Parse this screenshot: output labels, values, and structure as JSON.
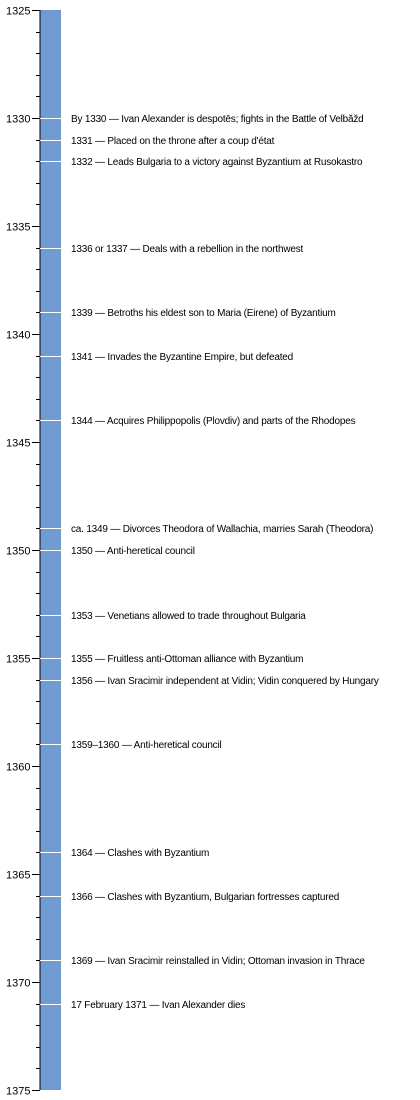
{
  "timeline": {
    "start_year": 1325,
    "end_year": 1375,
    "major_step": 5,
    "minor_step": 1,
    "bar_color": "#6f9bd2",
    "events": [
      {
        "year": 1330,
        "label": "By 1330 — Ivan Alexander is despotēs; fights in the Battle of Velbăžd"
      },
      {
        "year": 1331,
        "label": "1331 — Placed on the throne after a coup d'état"
      },
      {
        "year": 1332,
        "label": "1332 — Leads Bulgaria to a victory against Byzantium at Rusokastro"
      },
      {
        "year": 1336,
        "label": "1336 or 1337 — Deals with a rebellion in the northwest"
      },
      {
        "year": 1339,
        "label": "1339 — Betroths his eldest son to Maria (Eirene) of Byzantium"
      },
      {
        "year": 1341,
        "label": "1341 — Invades the Byzantine Empire, but defeated"
      },
      {
        "year": 1344,
        "label": "1344 — Acquires Philippopolis (Plovdiv) and parts of the Rhodopes"
      },
      {
        "year": 1349,
        "label": "ca. 1349 — Divorces Theodora of Wallachia, marries Sarah (Theodora)"
      },
      {
        "year": 1350,
        "label": "1350 — Anti-heretical council"
      },
      {
        "year": 1353,
        "label": "1353 — Venetians allowed to trade throughout Bulgaria"
      },
      {
        "year": 1355,
        "label": "1355 — Fruitless anti-Ottoman alliance with Byzantium"
      },
      {
        "year": 1356,
        "label": "1356 — Ivan Sracimir independent at Vidin; Vidin conquered by Hungary"
      },
      {
        "year": 1359,
        "label": "1359–1360 — Anti-heretical council"
      },
      {
        "year": 1364,
        "label": "1364 — Clashes with Byzantium"
      },
      {
        "year": 1366,
        "label": "1366 — Clashes with Byzantium, Bulgarian fortresses captured"
      },
      {
        "year": 1369,
        "label": "1369 — Ivan Sracimir reinstalled in Vidin; Ottoman invasion in Thrace"
      },
      {
        "year": 1371,
        "label": "17 February 1371 — Ivan Alexander dies"
      }
    ]
  }
}
